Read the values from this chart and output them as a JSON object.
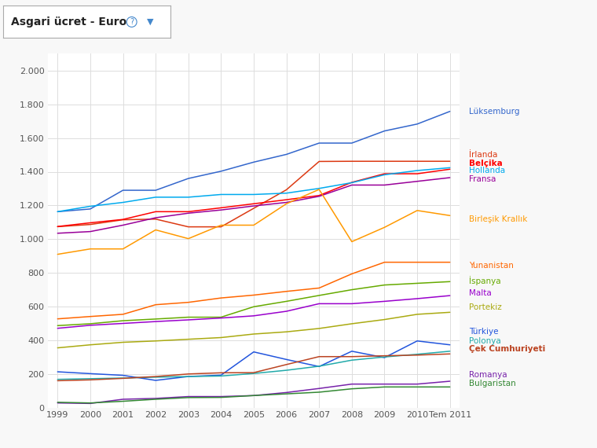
{
  "title": "Asgari ücret - Euro",
  "background_color": "#f8f8f8",
  "plot_bg_color": "#ffffff",
  "grid_color": "#dddddd",
  "ylim": [
    0,
    2100
  ],
  "yticks": [
    0,
    200,
    400,
    600,
    800,
    1000,
    1200,
    1400,
    1600,
    1800,
    2000
  ],
  "ytick_labels": [
    "0",
    "200",
    "400",
    "600",
    "800",
    "1.000",
    "1.200",
    "1.400",
    "1.600",
    "1.800",
    "2.000"
  ],
  "xtick_labels": [
    "1999",
    "2000",
    "2001",
    "2002",
    "2003",
    "2004",
    "2005",
    "2006",
    "2007",
    "2008",
    "2009",
    "2010",
    "Tem 2011"
  ],
  "series": [
    {
      "name": "Lüksemburg",
      "color": "#3366cc",
      "values": [
        1163,
        1179,
        1290,
        1290,
        1360,
        1403,
        1457,
        1503,
        1570,
        1570,
        1642,
        1683,
        1758
      ]
    },
    {
      "name": "İrlanda",
      "color": "#dc3912",
      "values": [
        1074,
        1087,
        1115,
        1119,
        1073,
        1073,
        1183,
        1293,
        1461,
        1462,
        1462,
        1462,
        1462
      ]
    },
    {
      "name": "Belçika",
      "color": "#ff0000",
      "values": [
        1075,
        1097,
        1117,
        1163,
        1163,
        1186,
        1210,
        1234,
        1259,
        1337,
        1388,
        1388,
        1415
      ]
    },
    {
      "name": "Hollanda",
      "color": "#00aaee",
      "values": [
        1163,
        1195,
        1218,
        1249,
        1249,
        1265,
        1265,
        1273,
        1301,
        1335,
        1382,
        1407,
        1424
      ]
    },
    {
      "name": "Fransa",
      "color": "#990099",
      "values": [
        1035,
        1045,
        1083,
        1127,
        1154,
        1173,
        1197,
        1218,
        1254,
        1321,
        1321,
        1343,
        1365
      ]
    },
    {
      "name": "Birleşik Krallık",
      "color": "#ff9900",
      "values": [
        910,
        942,
        942,
        1055,
        1003,
        1083,
        1083,
        1210,
        1295,
        985,
        1070,
        1170,
        1140
      ]
    },
    {
      "name": "Yunanistan",
      "color": "#ff6600",
      "values": [
        527,
        541,
        554,
        611,
        625,
        651,
        668,
        690,
        710,
        794,
        863,
        863,
        863
      ]
    },
    {
      "name": "İspanya",
      "color": "#66aa00",
      "values": [
        487,
        498,
        516,
        526,
        537,
        537,
        599,
        631,
        666,
        700,
        728,
        738,
        748
      ]
    },
    {
      "name": "Malta",
      "color": "#9900cc",
      "values": [
        471,
        489,
        500,
        511,
        521,
        532,
        545,
        572,
        617,
        617,
        631,
        647,
        665
      ]
    },
    {
      "name": "Portekiz",
      "color": "#aaaa11",
      "values": [
        355,
        373,
        388,
        396,
        406,
        416,
        437,
        450,
        470,
        498,
        523,
        554,
        566
      ]
    },
    {
      "name": "Türkiye",
      "color": "#2255dd",
      "values": [
        213,
        202,
        192,
        162,
        185,
        193,
        331,
        286,
        244,
        335,
        297,
        396,
        373
      ]
    },
    {
      "name": "Polonya",
      "color": "#22aaaa",
      "values": [
        168,
        172,
        176,
        181,
        185,
        188,
        203,
        222,
        246,
        282,
        301,
        317,
        335
      ]
    },
    {
      "name": "Çek Cumhuriyeti",
      "color": "#bb4422",
      "values": [
        160,
        165,
        174,
        185,
        200,
        207,
        208,
        256,
        303,
        303,
        308,
        312,
        319
      ]
    },
    {
      "name": "Romanya",
      "color": "#7722aa",
      "values": [
        28,
        25,
        50,
        55,
        66,
        66,
        72,
        90,
        114,
        140,
        140,
        140,
        157
      ]
    },
    {
      "name": "Bulgaristan",
      "color": "#338833",
      "values": [
        32,
        28,
        38,
        50,
        60,
        61,
        72,
        82,
        92,
        112,
        123,
        123,
        123
      ]
    }
  ],
  "label_info": [
    {
      "name": "Lüksemburg",
      "color": "#3366cc",
      "bold": false,
      "y": 1758
    },
    {
      "name": "İrlanda",
      "color": "#dc3912",
      "bold": false,
      "y": 1500
    },
    {
      "name": "Belçika",
      "color": "#ff0000",
      "bold": true,
      "y": 1450
    },
    {
      "name": "Hollanda",
      "color": "#00aaee",
      "bold": false,
      "y": 1405
    },
    {
      "name": "Fransa",
      "color": "#990099",
      "bold": false,
      "y": 1358
    },
    {
      "name": "Birleşik Krallık",
      "color": "#ff9900",
      "bold": false,
      "y": 1120
    },
    {
      "name": "Yunanistan",
      "color": "#ff6600",
      "bold": false,
      "y": 843
    },
    {
      "name": "İspanya",
      "color": "#66aa00",
      "bold": false,
      "y": 755
    },
    {
      "name": "Malta",
      "color": "#9900cc",
      "bold": false,
      "y": 678
    },
    {
      "name": "Portekiz",
      "color": "#aaaa11",
      "bold": false,
      "y": 596
    },
    {
      "name": "Türkiye",
      "color": "#2255dd",
      "bold": false,
      "y": 453
    },
    {
      "name": "Polonya",
      "color": "#22aaaa",
      "bold": false,
      "y": 397
    },
    {
      "name": "Çek Cumhuriyeti",
      "color": "#bb4422",
      "bold": true,
      "y": 350
    },
    {
      "name": "Romanya",
      "color": "#7722aa",
      "bold": false,
      "y": 193
    },
    {
      "name": "Bulgaristan",
      "color": "#338833",
      "bold": false,
      "y": 143
    }
  ]
}
